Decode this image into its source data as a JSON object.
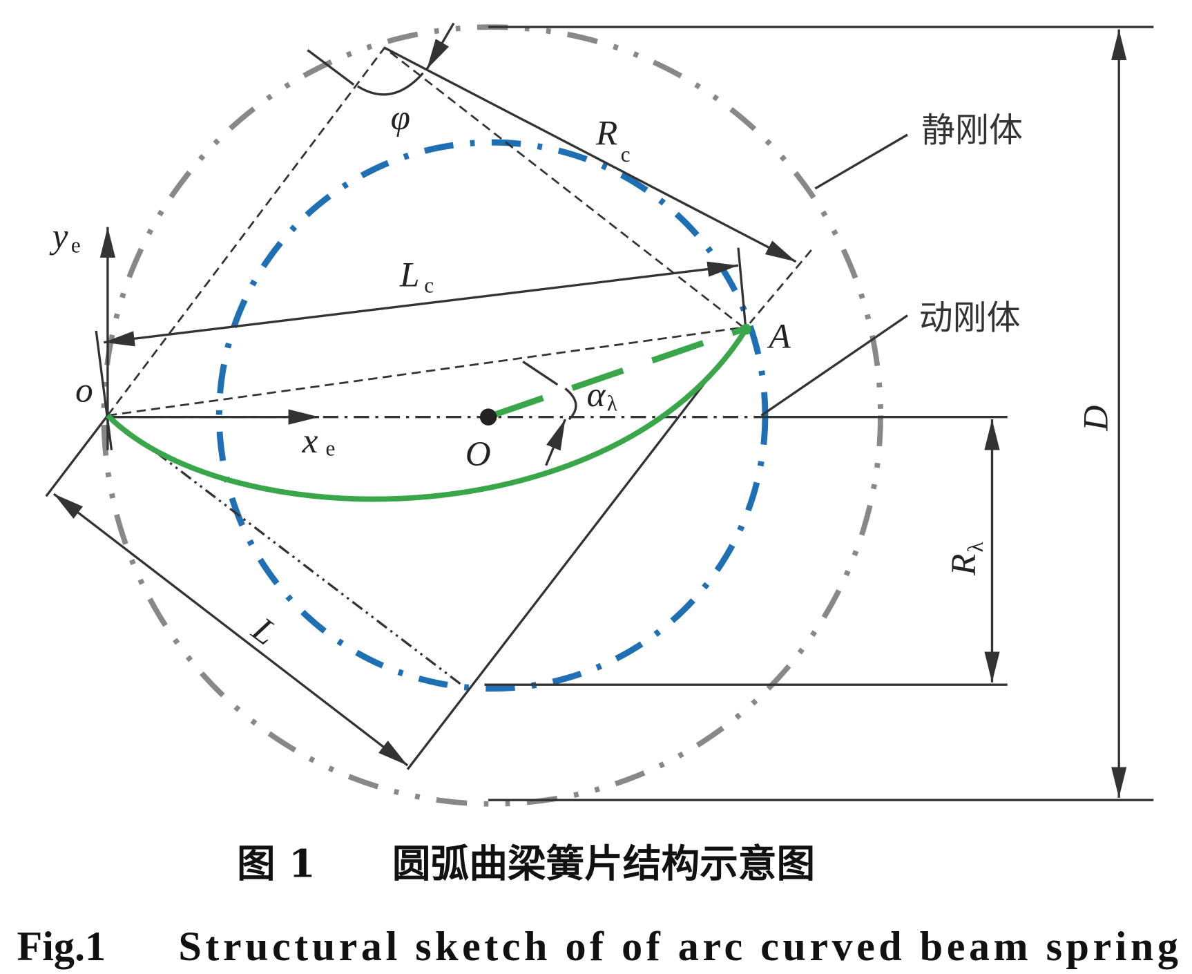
{
  "labels": {
    "ye": {
      "main": "y",
      "sub": "e"
    },
    "xe": {
      "main": "x",
      "sub": "e"
    },
    "Lc": {
      "main": "L",
      "sub": "c"
    },
    "Rc": {
      "main": "R",
      "sub": "c"
    },
    "phi": "φ",
    "A": "A",
    "o": "o",
    "O": "O",
    "alpha": {
      "main": "α",
      "sub": "λ"
    },
    "L": "L",
    "D": "D",
    "Rlambda": {
      "main": "R",
      "sub": "λ"
    },
    "static_body": "静刚体",
    "moving_body": "动刚体"
  },
  "caption": {
    "zh_figure": "图 1",
    "zh_title": "圆弧曲梁簧片结构示意图",
    "en_figure": "Fig.1",
    "en_title": "Structural sketch of of arc curved beam spring"
  }
}
